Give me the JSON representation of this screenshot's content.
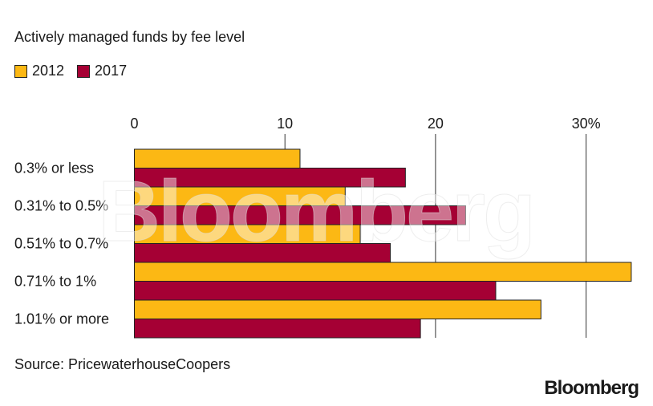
{
  "chart_data": {
    "type": "bar",
    "orientation": "horizontal",
    "title": "Actively managed funds by fee level",
    "categories": [
      "0.3% or less",
      "0.31% to 0.5%",
      "0.51% to 0.7%",
      "0.71% to 1%",
      "1.01% or more"
    ],
    "series": [
      {
        "name": "2012",
        "color": "#fcb814",
        "values": [
          11,
          14,
          15,
          33,
          27
        ]
      },
      {
        "name": "2017",
        "color": "#a50034",
        "values": [
          18,
          22,
          17,
          24,
          19
        ]
      }
    ],
    "xlim": [
      0,
      33
    ],
    "ticks": [
      0,
      10,
      20,
      30
    ],
    "tick_labels": [
      "0",
      "10",
      "20",
      "30%"
    ],
    "grid": true,
    "legend_position": "top-left",
    "source": "Source: PricewaterhouseCoopers",
    "logo": "Bloomberg",
    "watermark": "Bloomberg"
  }
}
